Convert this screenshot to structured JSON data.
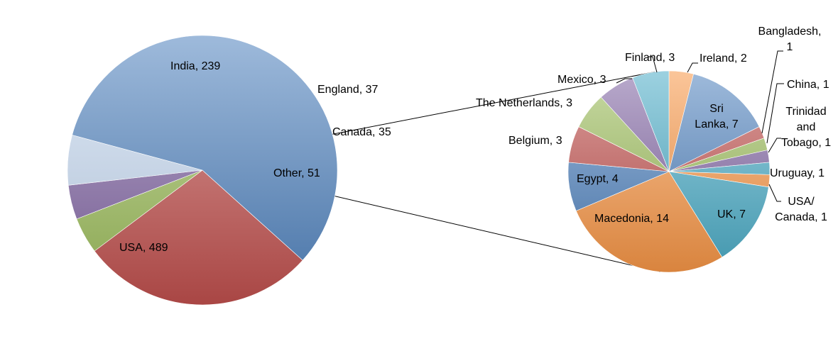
{
  "chart_data": [
    {
      "type": "pie",
      "title": "",
      "slices": [
        {
          "label": "India, 239",
          "name": "India",
          "value": 239,
          "color": "#c0504d"
        },
        {
          "label": "England, 37",
          "name": "England",
          "value": 37,
          "color": "#9bbb59"
        },
        {
          "label": "Canada, 35",
          "name": "Canada",
          "value": 35,
          "color": "#8064a2"
        },
        {
          "label": "Other, 51",
          "name": "Other",
          "value": 51,
          "color": "#c6d9f1"
        },
        {
          "label": "USA, 489",
          "name": "USA",
          "value": 489,
          "color": "#4f81bd"
        }
      ]
    },
    {
      "type": "pie",
      "title": "",
      "slices": [
        {
          "label": "Ireland, 2",
          "name": "Ireland",
          "value": 2,
          "color": "#f79646"
        },
        {
          "label": "Sri Lanka, 7",
          "name": "Sri Lanka",
          "value": 7,
          "color": "#4f81bd"
        },
        {
          "label": "Bangladesh, 1",
          "name": "Bangladesh",
          "value": 1,
          "color": "#c0504d"
        },
        {
          "label": "China, 1",
          "name": "China",
          "value": 1,
          "color": "#9bbb59"
        },
        {
          "label": "Trinidad and Tobago, 1",
          "name": "Trinidad and Tobago",
          "value": 1,
          "color": "#8064a2"
        },
        {
          "label": "Uruguay, 1",
          "name": "Uruguay",
          "value": 1,
          "color": "#4bacc6"
        },
        {
          "label": "USA/ Canada, 1",
          "name": "USA/ Canada",
          "value": 1,
          "color": "#f79646"
        },
        {
          "label": "UK, 7",
          "name": "UK",
          "value": 7,
          "color": "#4bacc6"
        },
        {
          "label": "Macedonia, 14",
          "name": "Macedonia",
          "value": 14,
          "color": "#f79646"
        },
        {
          "label": "Egypt, 4",
          "name": "Egypt",
          "value": 4,
          "color": "#4f81bd"
        },
        {
          "label": "Belgium, 3",
          "name": "Belgium",
          "value": 3,
          "color": "#c0504d"
        },
        {
          "label": "The Netherlands, 3",
          "name": "The Netherlands",
          "value": 3,
          "color": "#9bbb59"
        },
        {
          "label": "Mexico, 3",
          "name": "Mexico",
          "value": 3,
          "color": "#8064a2"
        },
        {
          "label": "Finland, 3",
          "name": "Finland",
          "value": 3,
          "color": "#4bacc6"
        }
      ]
    }
  ]
}
